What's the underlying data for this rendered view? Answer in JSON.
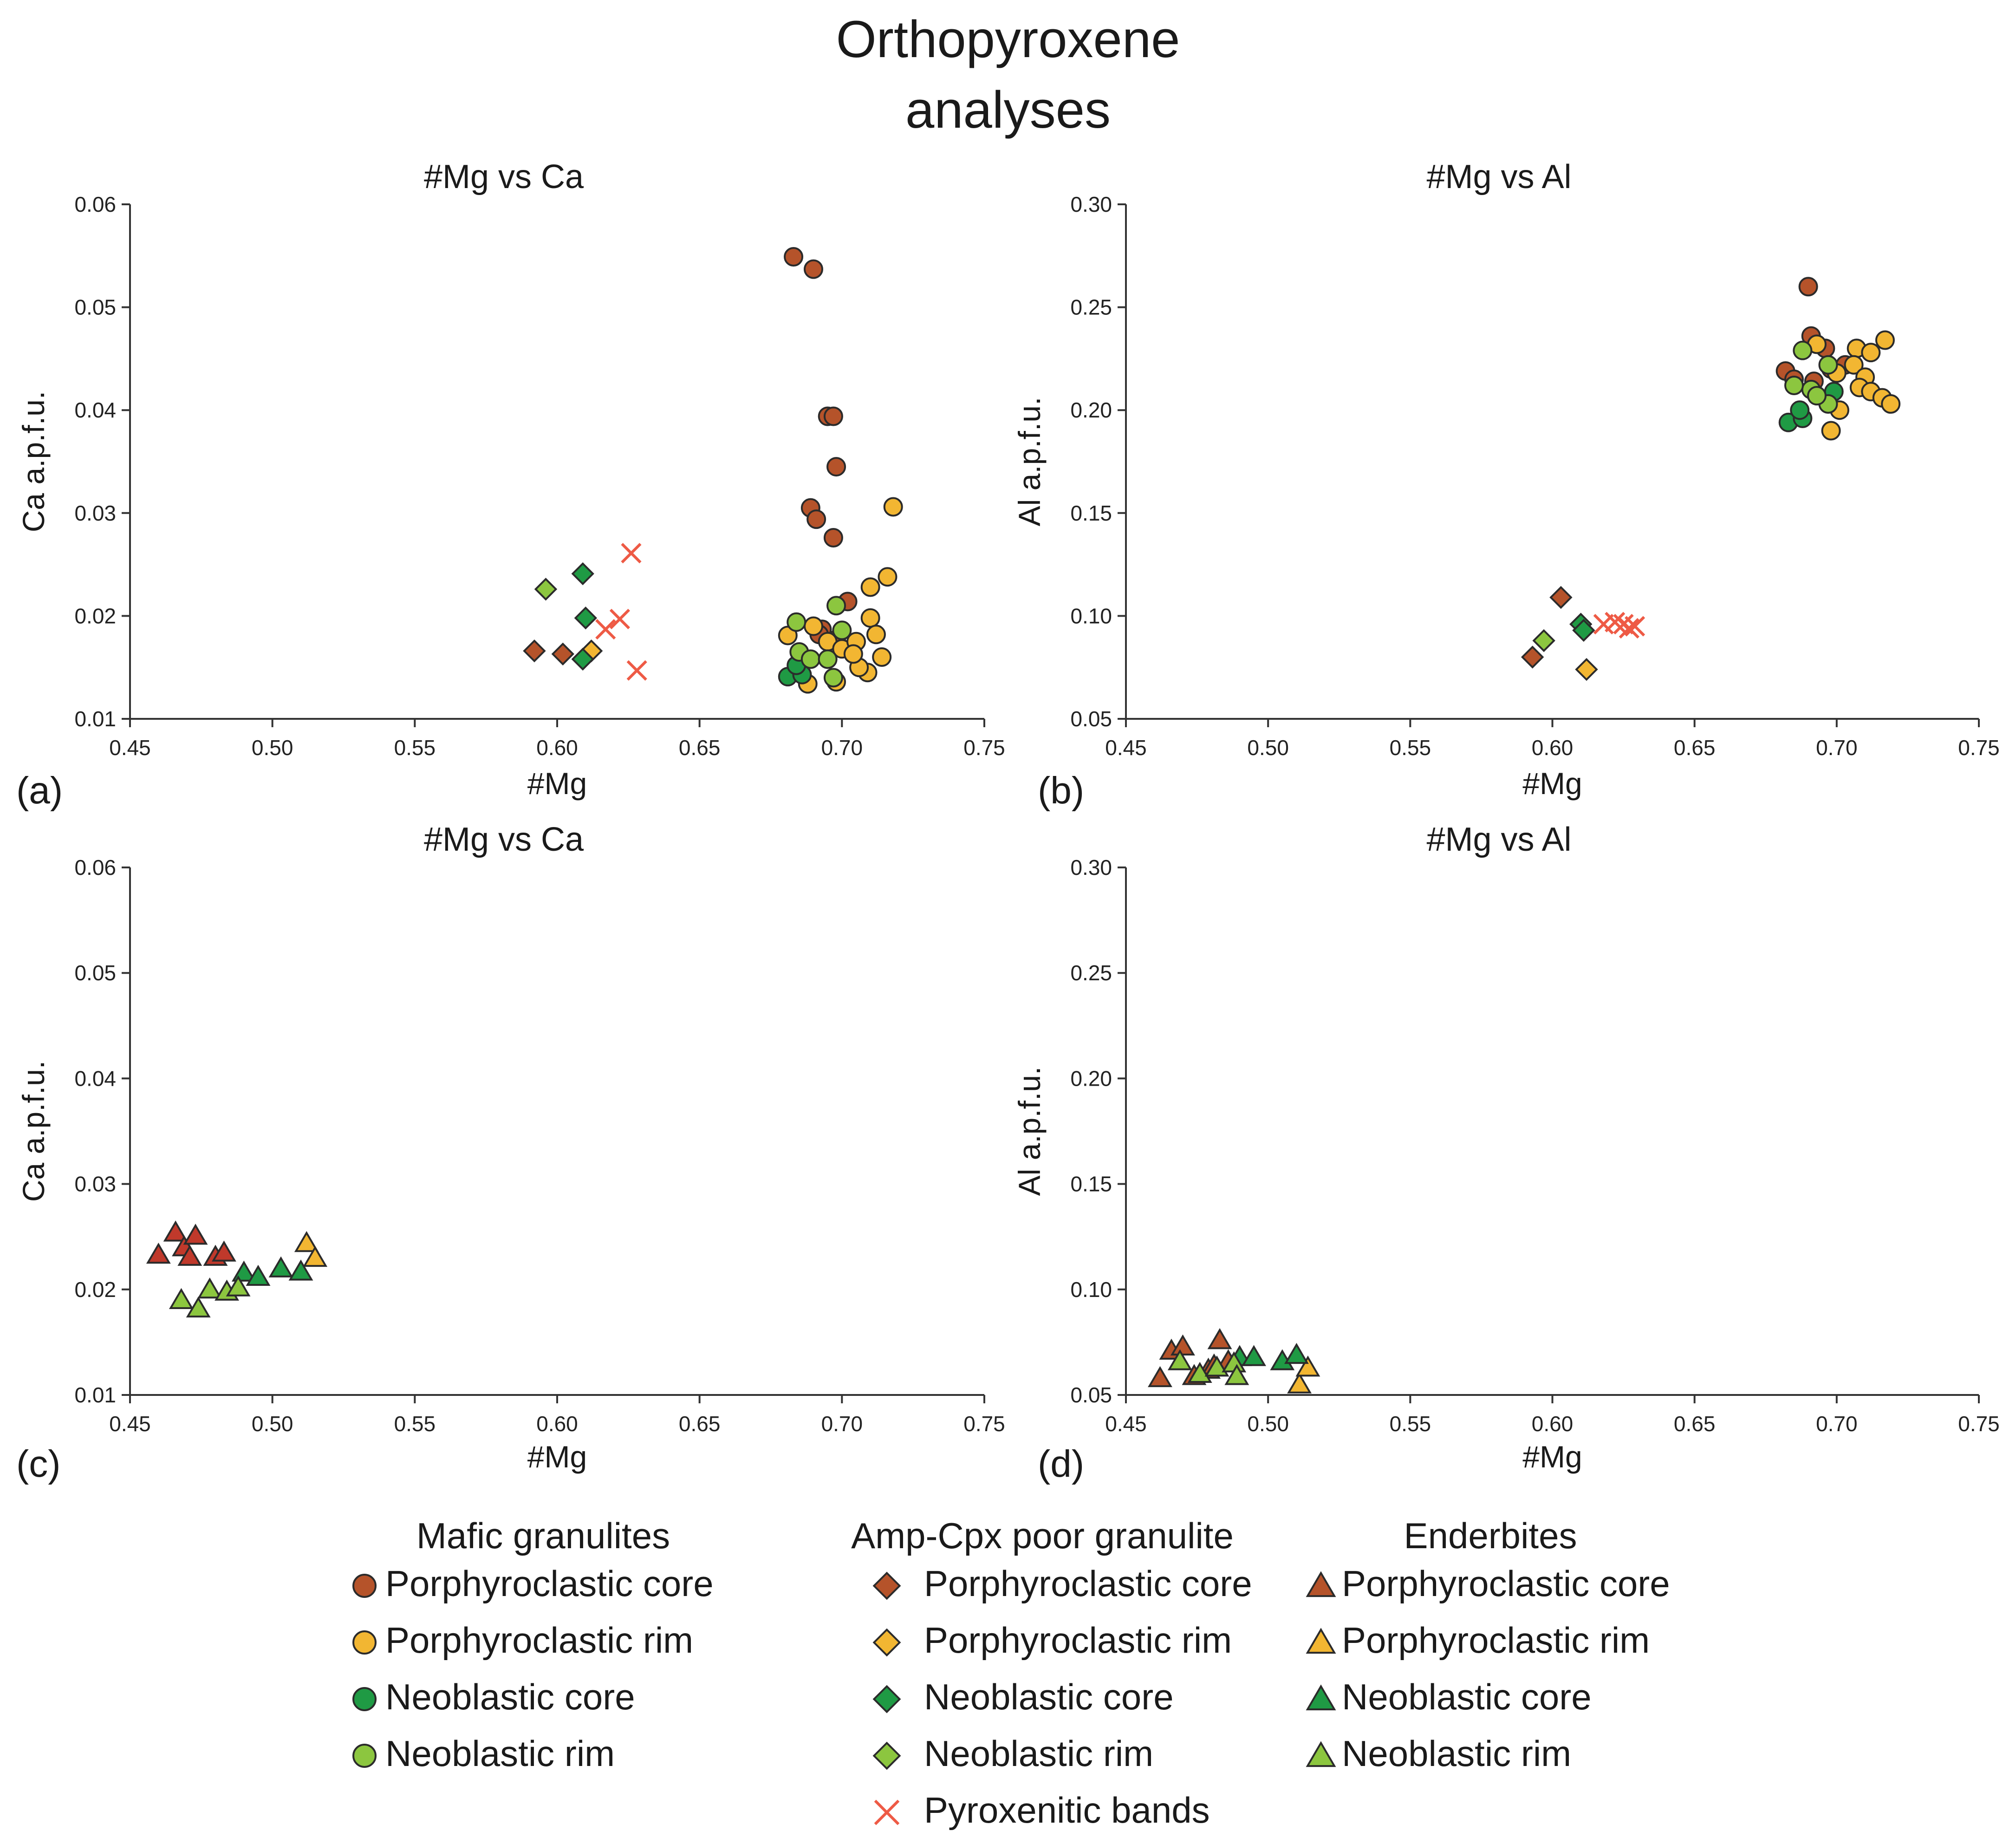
{
  "title_line1": "Orthopyroxene",
  "title_line2": "analyses",
  "colors": {
    "porph_core": "#b5532a",
    "porph_rim": "#f2b632",
    "neo_core": "#1f9a44",
    "neo_rim": "#8cc63f",
    "ench_core": "#c0392b",
    "pyroxenitic": "#ee5a45"
  },
  "legend": {
    "groups": [
      {
        "heading": "Mafic granulites",
        "marker": "circle",
        "items": [
          {
            "label": "Porphyroclastic core",
            "color": "#b5532a"
          },
          {
            "label": "Porphyroclastic rim",
            "color": "#f2b632"
          },
          {
            "label": "Neoblastic core",
            "color": "#1f9a44"
          },
          {
            "label": "Neoblastic rim",
            "color": "#8cc63f"
          }
        ]
      },
      {
        "heading": "Amp-Cpx poor granulite",
        "marker": "diamond",
        "items": [
          {
            "label": "Porphyroclastic core",
            "color": "#b5532a"
          },
          {
            "label": "Porphyroclastic rim",
            "color": "#f2b632"
          },
          {
            "label": "Neoblastic core",
            "color": "#1f9a44"
          },
          {
            "label": "Neoblastic rim",
            "color": "#8cc63f"
          },
          {
            "label": "Pyroxenitic bands",
            "color": "#ee5a45",
            "marker": "cross"
          }
        ]
      },
      {
        "heading": "Enderbites",
        "marker": "triangle",
        "items": [
          {
            "label": "Porphyroclastic core",
            "color": "#b5532a"
          },
          {
            "label": "Porphyroclastic rim",
            "color": "#f2b632"
          },
          {
            "label": "Neoblastic core",
            "color": "#1f9a44"
          },
          {
            "label": "Neoblastic rim",
            "color": "#8cc63f"
          }
        ]
      }
    ]
  },
  "chart_data": [
    {
      "panel": "(a)",
      "type": "scatter",
      "title": "#Mg vs Ca",
      "xlabel": "#Mg",
      "ylabel": "Ca a.p.f.u.",
      "xlim": [
        0.45,
        0.75
      ],
      "ylim": [
        0.01,
        0.06
      ],
      "xticks": [
        "0.45",
        "0.50",
        "0.55",
        "0.60",
        "0.65",
        "0.70",
        "0.75"
      ],
      "yticks": [
        "0.01",
        "0.02",
        "0.03",
        "0.04",
        "0.05",
        "0.06"
      ],
      "series": [
        {
          "name": "Mafic granulites - Porphyroclastic core",
          "marker": "circle",
          "color": "#b5532a",
          "points": [
            [
              0.683,
              0.0549
            ],
            [
              0.69,
              0.0537
            ],
            [
              0.695,
              0.0394
            ],
            [
              0.697,
              0.0394
            ],
            [
              0.698,
              0.0345
            ],
            [
              0.689,
              0.0305
            ],
            [
              0.691,
              0.0294
            ],
            [
              0.697,
              0.0276
            ],
            [
              0.702,
              0.0214
            ],
            [
              0.693,
              0.0187
            ],
            [
              0.698,
              0.0177
            ],
            [
              0.692,
              0.0182
            ]
          ]
        },
        {
          "name": "Mafic granulites - Porphyroclastic rim",
          "marker": "circle",
          "color": "#f2b632",
          "points": [
            [
              0.718,
              0.0306
            ],
            [
              0.716,
              0.0238
            ],
            [
              0.71,
              0.0228
            ],
            [
              0.681,
              0.0181
            ],
            [
              0.69,
              0.019
            ],
            [
              0.695,
              0.0175
            ],
            [
              0.7,
              0.0168
            ],
            [
              0.705,
              0.0175
            ],
            [
              0.71,
              0.0198
            ],
            [
              0.712,
              0.0182
            ],
            [
              0.714,
              0.016
            ],
            [
              0.709,
              0.0145
            ],
            [
              0.706,
              0.015
            ],
            [
              0.688,
              0.0134
            ],
            [
              0.698,
              0.0136
            ],
            [
              0.704,
              0.0163
            ]
          ]
        },
        {
          "name": "Mafic granulites - Neoblastic core",
          "marker": "circle",
          "color": "#1f9a44",
          "points": [
            [
              0.681,
              0.0141
            ],
            [
              0.686,
              0.0143
            ],
            [
              0.684,
              0.0152
            ]
          ]
        },
        {
          "name": "Mafic granulites - Neoblastic rim",
          "marker": "circle",
          "color": "#8cc63f",
          "points": [
            [
              0.684,
              0.0194
            ],
            [
              0.698,
              0.021
            ],
            [
              0.685,
              0.0165
            ],
            [
              0.689,
              0.0158
            ],
            [
              0.695,
              0.0158
            ],
            [
              0.697,
              0.014
            ],
            [
              0.7,
              0.0186
            ]
          ]
        },
        {
          "name": "Amp-Cpx poor granulite - Porphyroclastic core",
          "marker": "diamond",
          "color": "#b5532a",
          "points": [
            [
              0.592,
              0.0166
            ],
            [
              0.602,
              0.0163
            ]
          ]
        },
        {
          "name": "Amp-Cpx poor granulite - Porphyroclastic rim",
          "marker": "diamond",
          "color": "#f2b632",
          "points": [
            [
              0.612,
              0.0166
            ]
          ]
        },
        {
          "name": "Amp-Cpx poor granulite - Neoblastic core",
          "marker": "diamond",
          "color": "#1f9a44",
          "points": [
            [
              0.609,
              0.0241
            ],
            [
              0.61,
              0.0198
            ],
            [
              0.609,
              0.0158
            ]
          ]
        },
        {
          "name": "Amp-Cpx poor granulite - Neoblastic rim",
          "marker": "diamond",
          "color": "#8cc63f",
          "points": [
            [
              0.596,
              0.0226
            ]
          ]
        },
        {
          "name": "Pyroxenitic bands",
          "marker": "cross",
          "color": "#ee5a45",
          "points": [
            [
              0.626,
              0.0261
            ],
            [
              0.622,
              0.0197
            ],
            [
              0.617,
              0.0187
            ],
            [
              0.628,
              0.0147
            ]
          ]
        }
      ]
    },
    {
      "panel": "(b)",
      "type": "scatter",
      "title": "#Mg vs Al",
      "xlabel": "#Mg",
      "ylabel": "Al a.p.f.u.",
      "xlim": [
        0.45,
        0.75
      ],
      "ylim": [
        0.05,
        0.3
      ],
      "xticks": [
        "0.45",
        "0.50",
        "0.55",
        "0.60",
        "0.65",
        "0.70",
        "0.75"
      ],
      "yticks": [
        "0.05",
        "0.10",
        "0.15",
        "0.20",
        "0.25",
        "0.30"
      ],
      "series": [
        {
          "name": "Mafic granulites - Porphyroclastic core",
          "marker": "circle",
          "color": "#b5532a",
          "points": [
            [
              0.69,
              0.26
            ],
            [
              0.691,
              0.236
            ],
            [
              0.696,
              0.23
            ],
            [
              0.682,
              0.219
            ],
            [
              0.692,
              0.214
            ],
            [
              0.698,
              0.22
            ],
            [
              0.703,
              0.222
            ],
            [
              0.685,
              0.215
            ]
          ]
        },
        {
          "name": "Mafic granulites - Porphyroclastic rim",
          "marker": "circle",
          "color": "#f2b632",
          "points": [
            [
              0.717,
              0.234
            ],
            [
              0.707,
              0.23
            ],
            [
              0.712,
              0.228
            ],
            [
              0.706,
              0.222
            ],
            [
              0.71,
              0.216
            ],
            [
              0.708,
              0.211
            ],
            [
              0.712,
              0.209
            ],
            [
              0.716,
              0.206
            ],
            [
              0.719,
              0.203
            ],
            [
              0.701,
              0.2
            ],
            [
              0.698,
              0.19
            ],
            [
              0.693,
              0.232
            ],
            [
              0.7,
              0.218
            ]
          ]
        },
        {
          "name": "Mafic granulites - Neoblastic core",
          "marker": "circle",
          "color": "#1f9a44",
          "points": [
            [
              0.683,
              0.194
            ],
            [
              0.688,
              0.196
            ],
            [
              0.687,
              0.2
            ],
            [
              0.699,
              0.209
            ]
          ]
        },
        {
          "name": "Mafic granulites - Neoblastic rim",
          "marker": "circle",
          "color": "#8cc63f",
          "points": [
            [
              0.688,
              0.229
            ],
            [
              0.697,
              0.222
            ],
            [
              0.691,
              0.21
            ],
            [
              0.685,
              0.212
            ],
            [
              0.697,
              0.203
            ],
            [
              0.693,
              0.207
            ]
          ]
        },
        {
          "name": "Amp-Cpx poor granulite - Porphyroclastic core",
          "marker": "diamond",
          "color": "#b5532a",
          "points": [
            [
              0.603,
              0.109
            ],
            [
              0.593,
              0.08
            ]
          ]
        },
        {
          "name": "Amp-Cpx poor granulite - Porphyroclastic rim",
          "marker": "diamond",
          "color": "#f2b632",
          "points": [
            [
              0.612,
              0.074
            ]
          ]
        },
        {
          "name": "Amp-Cpx poor granulite - Neoblastic core",
          "marker": "diamond",
          "color": "#1f9a44",
          "points": [
            [
              0.61,
              0.096
            ],
            [
              0.611,
              0.093
            ]
          ]
        },
        {
          "name": "Amp-Cpx poor granulite - Neoblastic rim",
          "marker": "diamond",
          "color": "#8cc63f",
          "points": [
            [
              0.597,
              0.088
            ]
          ]
        },
        {
          "name": "Pyroxenitic bands",
          "marker": "cross",
          "color": "#ee5a45",
          "points": [
            [
              0.618,
              0.096
            ],
            [
              0.622,
              0.097
            ],
            [
              0.625,
              0.096
            ],
            [
              0.627,
              0.094
            ],
            [
              0.629,
              0.095
            ]
          ]
        }
      ]
    },
    {
      "panel": "(c)",
      "type": "scatter",
      "title": "#Mg vs Ca",
      "xlabel": "#Mg",
      "ylabel": "Ca a.p.f.u.",
      "xlim": [
        0.45,
        0.75
      ],
      "ylim": [
        0.01,
        0.06
      ],
      "xticks": [
        "0.45",
        "0.50",
        "0.55",
        "0.60",
        "0.65",
        "0.70",
        "0.75"
      ],
      "yticks": [
        "0.01",
        "0.02",
        "0.03",
        "0.04",
        "0.05",
        "0.06"
      ],
      "series": [
        {
          "name": "Enderbites - Porphyroclastic core",
          "marker": "triangle",
          "color": "#c0392b",
          "points": [
            [
              0.46,
              0.0233
            ],
            [
              0.466,
              0.0254
            ],
            [
              0.469,
              0.024
            ],
            [
              0.471,
              0.0231
            ],
            [
              0.473,
              0.0251
            ],
            [
              0.48,
              0.0231
            ],
            [
              0.483,
              0.0235
            ]
          ]
        },
        {
          "name": "Enderbites - Porphyroclastic rim",
          "marker": "triangle",
          "color": "#f2b632",
          "points": [
            [
              0.512,
              0.0244
            ],
            [
              0.515,
              0.023
            ]
          ]
        },
        {
          "name": "Enderbites - Neoblastic core",
          "marker": "triangle",
          "color": "#1f9a44",
          "points": [
            [
              0.49,
              0.0216
            ],
            [
              0.495,
              0.0212
            ],
            [
              0.503,
              0.022
            ],
            [
              0.51,
              0.0217
            ]
          ]
        },
        {
          "name": "Enderbites - Neoblastic rim",
          "marker": "triangle",
          "color": "#8cc63f",
          "points": [
            [
              0.468,
              0.019
            ],
            [
              0.474,
              0.0182
            ],
            [
              0.478,
              0.02
            ],
            [
              0.484,
              0.0198
            ],
            [
              0.488,
              0.0202
            ]
          ]
        }
      ]
    },
    {
      "panel": "(d)",
      "type": "scatter",
      "title": "#Mg vs Al",
      "xlabel": "#Mg",
      "ylabel": "Al a.p.f.u.",
      "xlim": [
        0.45,
        0.75
      ],
      "ylim": [
        0.05,
        0.3
      ],
      "xticks": [
        "0.45",
        "0.50",
        "0.55",
        "0.60",
        "0.65",
        "0.70",
        "0.75"
      ],
      "yticks": [
        "0.05",
        "0.10",
        "0.15",
        "0.20",
        "0.25",
        "0.30"
      ],
      "series": [
        {
          "name": "Enderbites - Porphyroclastic core",
          "marker": "triangle",
          "color": "#b5532a",
          "points": [
            [
              0.462,
              0.058
            ],
            [
              0.466,
              0.071
            ],
            [
              0.47,
              0.073
            ],
            [
              0.474,
              0.059
            ],
            [
              0.479,
              0.062
            ],
            [
              0.481,
              0.064
            ],
            [
              0.483,
              0.076
            ],
            [
              0.486,
              0.066
            ]
          ]
        },
        {
          "name": "Enderbites - Porphyroclastic rim",
          "marker": "triangle",
          "color": "#f2b632",
          "points": [
            [
              0.511,
              0.055
            ],
            [
              0.514,
              0.063
            ]
          ]
        },
        {
          "name": "Enderbites - Neoblastic core",
          "marker": "triangle",
          "color": "#1f9a44",
          "points": [
            [
              0.49,
              0.068
            ],
            [
              0.495,
              0.068
            ],
            [
              0.505,
              0.066
            ],
            [
              0.51,
              0.069
            ]
          ]
        },
        {
          "name": "Enderbites - Neoblastic rim",
          "marker": "triangle",
          "color": "#8cc63f",
          "points": [
            [
              0.469,
              0.066
            ],
            [
              0.476,
              0.06
            ],
            [
              0.482,
              0.063
            ],
            [
              0.488,
              0.065
            ],
            [
              0.489,
              0.059
            ]
          ]
        }
      ]
    }
  ]
}
